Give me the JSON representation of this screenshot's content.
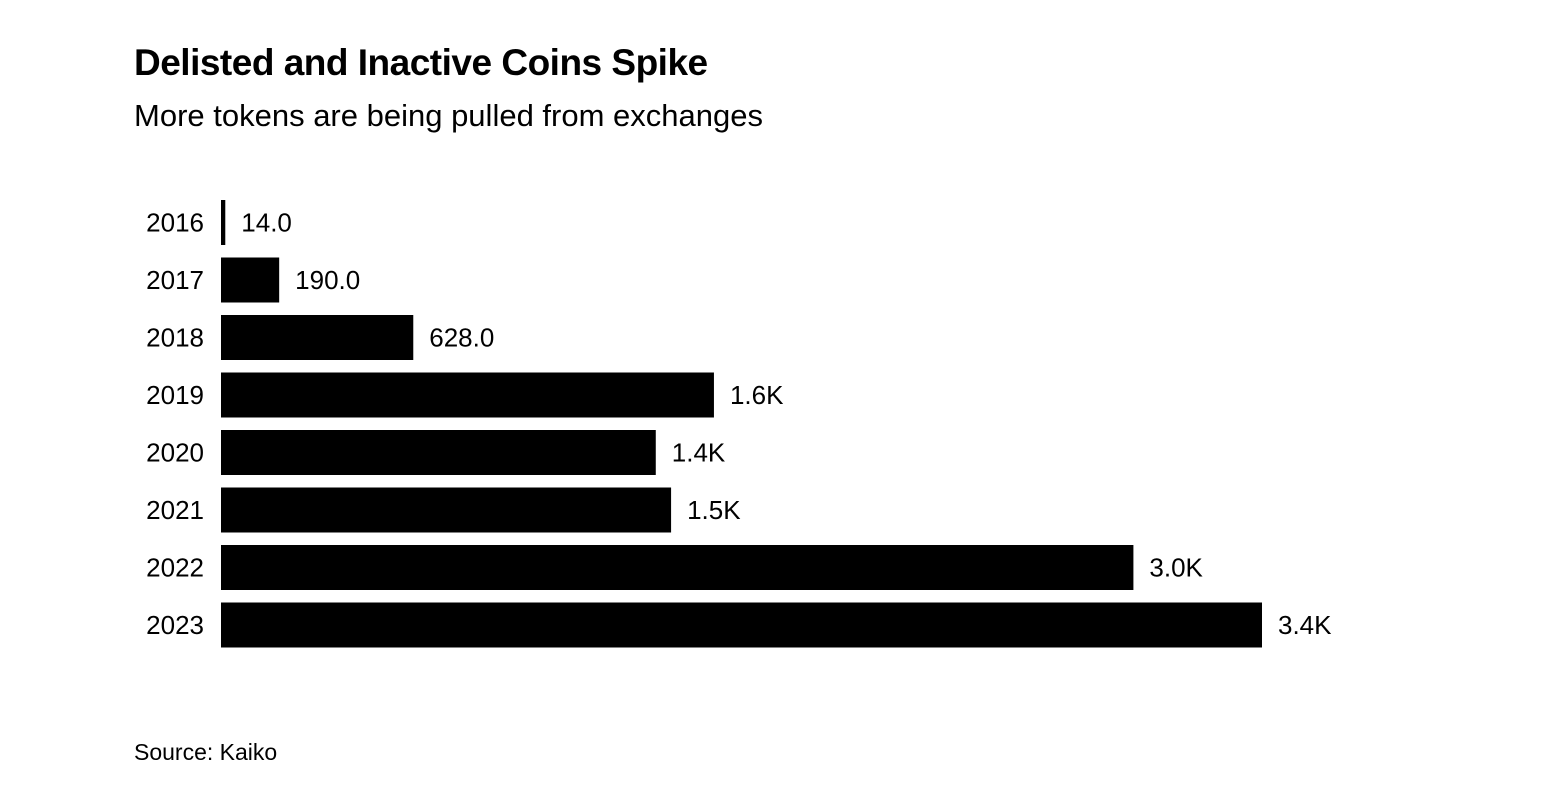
{
  "chart_data": {
    "type": "bar",
    "orientation": "horizontal",
    "title": "Delisted and Inactive Coins Spike",
    "subtitle": "More tokens are being pulled from exchanges",
    "source": "Source: Kaiko",
    "categories": [
      "2016",
      "2017",
      "2018",
      "2019",
      "2020",
      "2021",
      "2022",
      "2023"
    ],
    "values": [
      14,
      190,
      628,
      1610,
      1420,
      1470,
      2980,
      3400
    ],
    "data_labels": [
      "14.0",
      "190.0",
      "628.0",
      "1.6K",
      "1.4K",
      "1.5K",
      "3.0K",
      "3.4K"
    ],
    "xlim": [
      0,
      3400
    ],
    "xlabel": "",
    "ylabel": "",
    "grid": false,
    "bar_color": "#000000"
  }
}
